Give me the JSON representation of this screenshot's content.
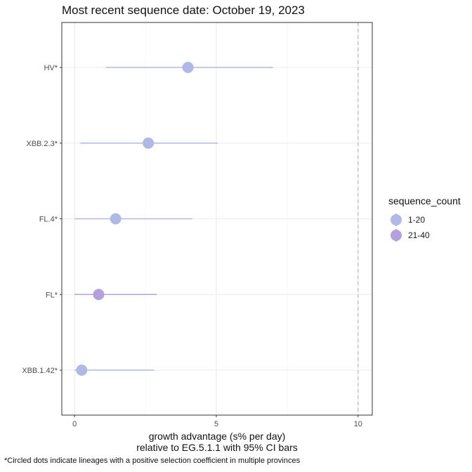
{
  "title": "Most recent sequence date: October 19, 2023",
  "chart_data": {
    "type": "scatter",
    "orientation": "horizontal",
    "categories": [
      "HV*",
      "XBB.2.3*",
      "FL.4*",
      "FL*",
      "XBB.1.42*"
    ],
    "estimate": [
      4.0,
      2.6,
      1.45,
      0.85,
      0.25
    ],
    "ci_low": [
      1.1,
      0.2,
      0.0,
      0.0,
      0.0
    ],
    "ci_high": [
      7.0,
      5.05,
      4.15,
      2.9,
      2.8
    ],
    "sequence_count_group": [
      "1-20",
      "1-20",
      "1-20",
      "21-40",
      "1-20"
    ],
    "xlim": [
      -0.45,
      10.5
    ],
    "xticks": [
      0,
      5,
      10
    ],
    "xlabel_line1": "growth advantage (s% per day)",
    "xlabel_line2": "relative to  EG.5.1.1  with 95% CI bars",
    "ylabel": "",
    "reference_line_x": 10,
    "grid": true
  },
  "legend": {
    "title": "sequence_count",
    "items": [
      {
        "label": "1-20",
        "color": "#b0b8e6"
      },
      {
        "label": "21-40",
        "color": "#b3a0dc"
      }
    ]
  },
  "caption": "*Circled dots indicate lineages with a positive selection coefficient in multiple provinces"
}
